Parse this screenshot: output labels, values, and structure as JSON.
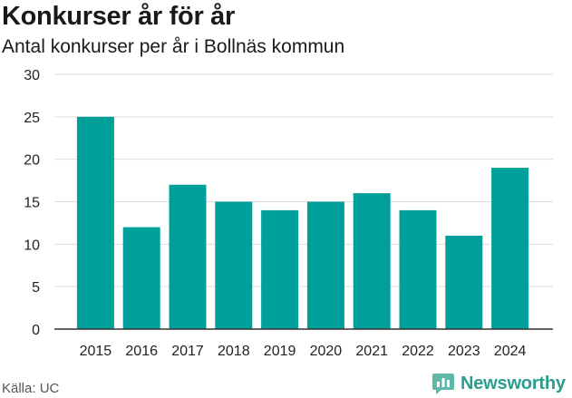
{
  "title": "Konkurser år för år",
  "subtitle": "Antal konkurser per år i Bollnäs kommun",
  "source": "Källa: UC",
  "brand": "Newsworthy",
  "colors": {
    "bar": "#00a09a",
    "grid": "#dddddd",
    "axis": "#333333",
    "brand": "#2a9d8f"
  },
  "chart_data": {
    "type": "bar",
    "categories": [
      "2015",
      "2016",
      "2017",
      "2018",
      "2019",
      "2020",
      "2021",
      "2022",
      "2023",
      "2024"
    ],
    "values": [
      25,
      12,
      17,
      15,
      14,
      15,
      16,
      14,
      11,
      19
    ],
    "title": "Konkurser år för år",
    "subtitle": "Antal konkurser per år i Bollnäs kommun",
    "xlabel": "",
    "ylabel": "",
    "ylim": [
      0,
      30
    ],
    "yticks": [
      0,
      5,
      10,
      15,
      20,
      25,
      30
    ],
    "grid": true,
    "legend": "none"
  }
}
